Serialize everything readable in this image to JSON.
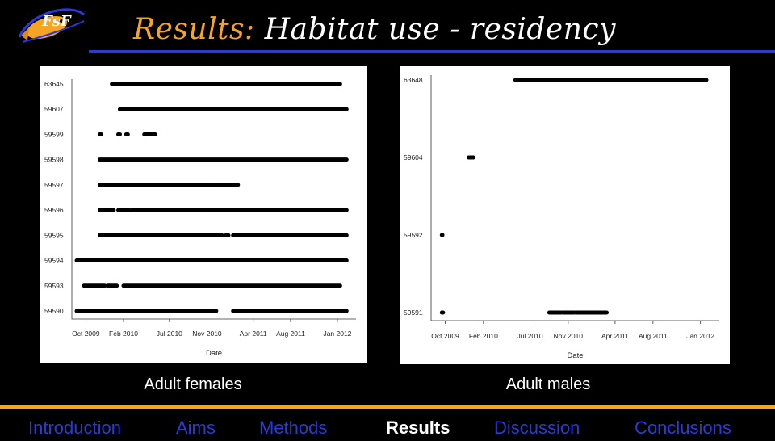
{
  "slide": {
    "title_prefix": "Results:",
    "title_main": "Habitat use - residency",
    "logo_text": "FsF",
    "colors": {
      "accent": "#f5a423",
      "nav": "#2a3ad8",
      "background": "#000000"
    }
  },
  "captions": {
    "left": "Adult females",
    "right": "Adult males"
  },
  "nav": {
    "items": [
      "Introduction",
      "Aims",
      "Methods",
      "Results",
      "Discussion",
      "Conclusions"
    ],
    "active": "Results"
  },
  "chart_data": [
    {
      "type": "scatter",
      "title": "",
      "xlabel": "Date",
      "ylabel": "",
      "x_ticks": [
        "Oct 2009",
        "Feb 2010",
        "Jul 2010",
        "Nov 2010",
        "Apr 2011",
        "Aug 2011",
        "Jan 2012"
      ],
      "xlim": [
        "2009-09-01",
        "2012-02-15"
      ],
      "categories": [
        "63645",
        "59607",
        "59599",
        "59598",
        "59597",
        "59596",
        "59595",
        "59594",
        "59593",
        "59590"
      ],
      "series": [
        {
          "id": "63645",
          "detections": [
            [
              "2009-12-25",
              "2012-01-10"
            ]
          ]
        },
        {
          "id": "59607",
          "detections": [
            [
              "2010-01-20",
              "2012-01-31"
            ]
          ]
        },
        {
          "id": "59599",
          "detections": [
            [
              "2009-11-15",
              "2009-11-20"
            ],
            [
              "2010-01-15",
              "2010-01-20"
            ],
            [
              "2010-02-10",
              "2010-02-15"
            ],
            [
              "2010-04-10",
              "2010-05-15"
            ]
          ]
        },
        {
          "id": "59598",
          "detections": [
            [
              "2009-11-15",
              "2012-01-31"
            ]
          ]
        },
        {
          "id": "59597",
          "detections": [
            [
              "2009-11-15",
              "2010-12-25"
            ],
            [
              "2011-01-01",
              "2011-02-10"
            ]
          ]
        },
        {
          "id": "59596",
          "detections": [
            [
              "2009-11-15",
              "2009-12-31"
            ],
            [
              "2010-01-15",
              "2010-02-20"
            ],
            [
              "2010-03-01",
              "2012-01-31"
            ]
          ]
        },
        {
          "id": "59595",
          "detections": [
            [
              "2009-11-15",
              "2010-12-20"
            ],
            [
              "2011-01-01",
              "2011-01-10"
            ],
            [
              "2011-01-25",
              "2012-01-31"
            ]
          ]
        },
        {
          "id": "59594",
          "detections": [
            [
              "2009-09-01",
              "2012-01-31"
            ]
          ]
        },
        {
          "id": "59593",
          "detections": [
            [
              "2009-09-25",
              "2009-12-01"
            ],
            [
              "2009-12-10",
              "2010-01-10"
            ],
            [
              "2010-02-01",
              "2012-01-10"
            ]
          ]
        },
        {
          "id": "59590",
          "detections": [
            [
              "2009-09-01",
              "2010-12-01"
            ],
            [
              "2011-01-25",
              "2012-01-31"
            ]
          ]
        }
      ]
    },
    {
      "type": "scatter",
      "title": "",
      "xlabel": "Date",
      "ylabel": "",
      "x_ticks": [
        "Oct 2009",
        "Feb 2010",
        "Jul 2010",
        "Nov 2010",
        "Apr 2011",
        "Aug 2011",
        "Jan 2012"
      ],
      "xlim": [
        "2009-09-01",
        "2012-02-15"
      ],
      "categories": [
        "63648",
        "59604",
        "59592",
        "59591"
      ],
      "series": [
        {
          "id": "63648",
          "detections": [
            [
              "2010-05-15",
              "2012-01-20"
            ]
          ]
        },
        {
          "id": "59604",
          "detections": [
            [
              "2009-12-15",
              "2009-12-31"
            ]
          ]
        },
        {
          "id": "59592",
          "detections": [
            [
              "2009-09-20",
              "2009-09-22"
            ]
          ]
        },
        {
          "id": "59591",
          "detections": [
            [
              "2009-09-20",
              "2009-09-24"
            ],
            [
              "2010-09-01",
              "2010-10-10"
            ],
            [
              "2010-10-15",
              "2010-11-20"
            ],
            [
              "2010-11-25",
              "2011-03-05"
            ]
          ]
        }
      ]
    }
  ]
}
